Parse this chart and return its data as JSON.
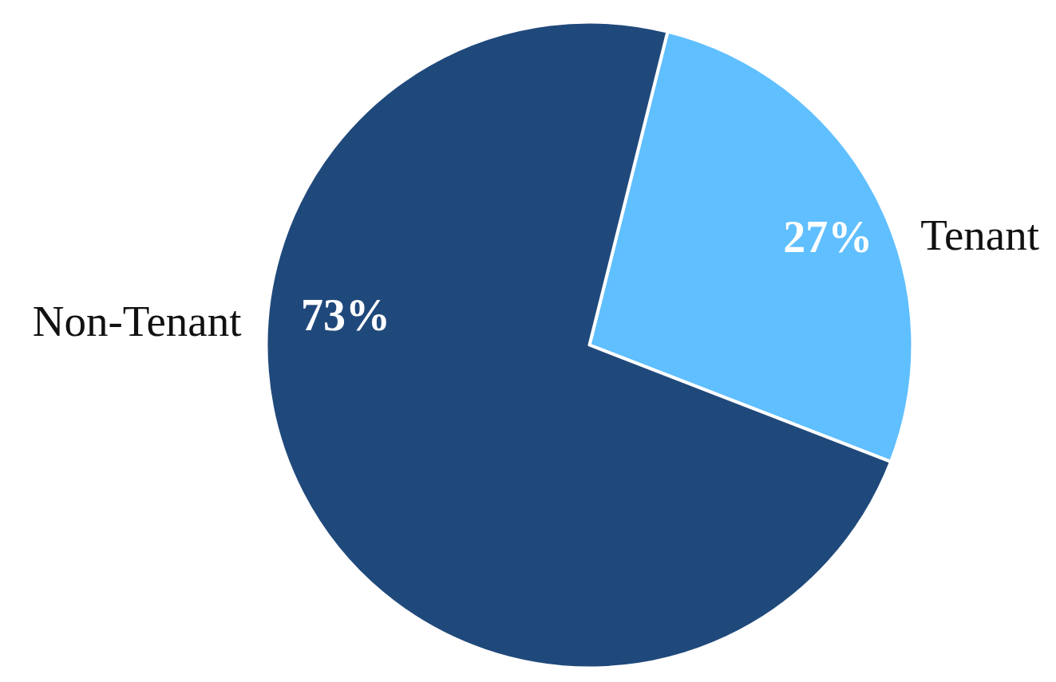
{
  "chart_data": {
    "type": "pie",
    "categories": [
      "Tenant",
      "Non-Tenant"
    ],
    "values": [
      27,
      73
    ],
    "colors": [
      "#60bfff",
      "#20497b"
    ],
    "value_labels": [
      "27%",
      "73%"
    ]
  }
}
